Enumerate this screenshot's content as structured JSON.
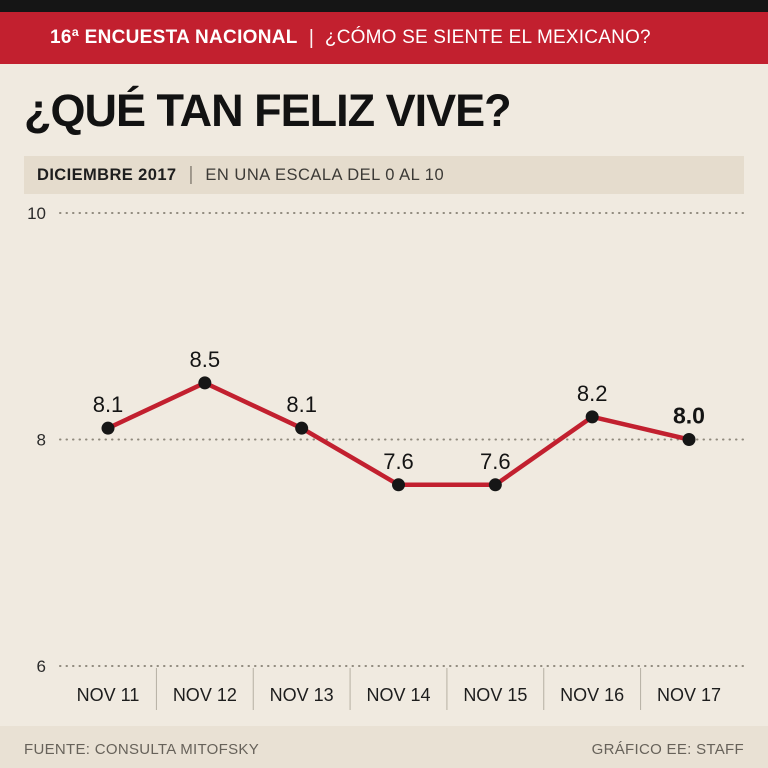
{
  "header": {
    "survey_label": "16ª ENCUESTA NACIONAL",
    "separator": "|",
    "survey_question": "¿CÓMO SE SIENTE EL MEXICANO?"
  },
  "title": "¿QUÉ TAN FELIZ VIVE?",
  "subtitle": {
    "date": "DICIEMBRE 2017",
    "separator": "|",
    "scale_note": "EN UNA ESCALA DEL 0 AL 10"
  },
  "chart_data": {
    "type": "line",
    "title": "¿QUÉ TAN FELIZ VIVE?",
    "categories": [
      "NOV 11",
      "NOV 12",
      "NOV 13",
      "NOV 14",
      "NOV 15",
      "NOV 16",
      "NOV 17"
    ],
    "values": [
      8.1,
      8.5,
      8.1,
      7.6,
      7.6,
      8.2,
      8.0
    ],
    "ylim": [
      6,
      10
    ],
    "yticks": [
      6,
      8,
      10
    ],
    "grid": "dotted horizontal",
    "legend": "none",
    "line_color": "#c2202f",
    "point_color": "#161616",
    "emphasized_last_label": true
  },
  "footer": {
    "source": "FUENTE: CONSULTA MITOFSKY",
    "credit": "GRÁFICO EE: STAFF"
  }
}
